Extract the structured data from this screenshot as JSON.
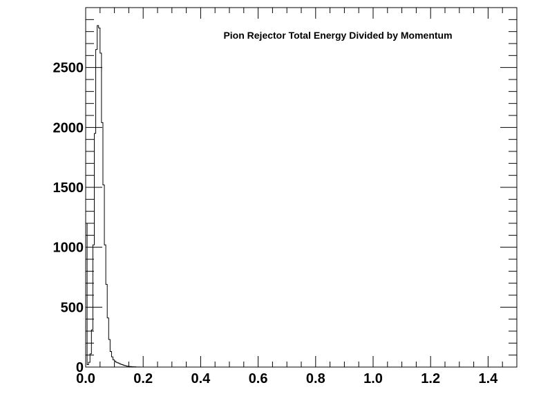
{
  "chart_data": {
    "type": "bar",
    "title": "Pion Rejector Total Energy Divided by Momentum",
    "xlabel": "",
    "ylabel": "",
    "xlim": [
      0,
      1.5
    ],
    "ylim": [
      0,
      3000
    ],
    "x_ticks": [
      0.0,
      0.2,
      0.4,
      0.6,
      0.8,
      1.0,
      1.2,
      1.4
    ],
    "x_tick_labels": [
      "0.0",
      "0.2",
      "0.4",
      "0.6",
      "0.8",
      "1.0",
      "1.2",
      "1.4"
    ],
    "y_ticks": [
      0,
      500,
      1000,
      1500,
      2000,
      2500
    ],
    "y_tick_labels": [
      "0",
      "500",
      "1000",
      "1500",
      "2000",
      "2500"
    ],
    "grid": false,
    "legend": "none",
    "bin_width": 0.005,
    "series": [
      {
        "x": [
          0.0,
          0.005,
          0.01,
          0.015,
          0.02,
          0.025,
          0.03,
          0.035,
          0.04,
          0.045,
          0.05,
          0.055,
          0.06,
          0.065,
          0.07,
          0.075,
          0.08,
          0.085,
          0.09,
          0.095,
          0.1,
          0.105,
          0.11,
          0.115,
          0.12,
          0.125,
          0.13,
          0.135,
          0.14,
          0.145,
          0.15,
          0.155,
          0.16,
          0.165,
          0.17,
          0.175,
          0.18,
          0.185,
          0.19,
          0.195
        ],
        "values": [
          1200,
          20,
          40,
          110,
          310,
          1020,
          1950,
          2650,
          2850,
          2830,
          2620,
          2040,
          1520,
          1020,
          690,
          410,
          230,
          130,
          85,
          60,
          50,
          40,
          35,
          30,
          24,
          20,
          16,
          12,
          9,
          7,
          5,
          4,
          3,
          2,
          2,
          1,
          1,
          1,
          0,
          0
        ]
      }
    ]
  }
}
